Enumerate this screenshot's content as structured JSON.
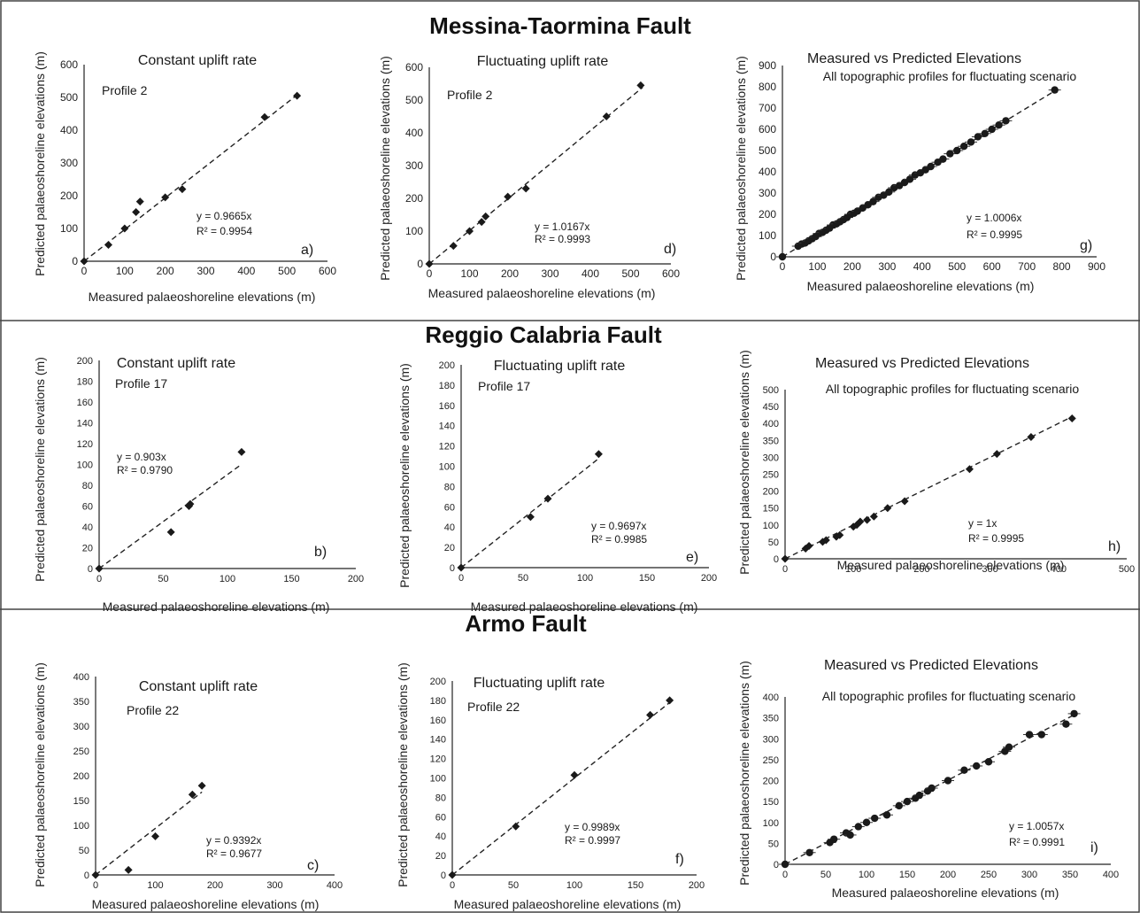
{
  "figure": {
    "section_titles": [
      "Messina-Taormina Fault",
      "Reggio Calabria Fault",
      "Armo Fault"
    ]
  },
  "chart_data": [
    {
      "id": "a",
      "section": "Messina-Taormina Fault",
      "type": "scatter",
      "title": "Constant uplift rate",
      "profile": "Profile 2",
      "xlabel": "Measured palaeoshoreline elevations (m)",
      "ylabel": "Predicted palaeoshoreline elevations (m)",
      "xlim": [
        0,
        600
      ],
      "ylim": [
        0,
        600
      ],
      "xticks": [
        0,
        100,
        200,
        300,
        400,
        500,
        600
      ],
      "yticks": [
        0,
        100,
        200,
        300,
        400,
        500,
        600
      ],
      "points": [
        [
          0,
          0
        ],
        [
          60,
          50
        ],
        [
          100,
          100
        ],
        [
          128,
          150
        ],
        [
          138,
          182
        ],
        [
          200,
          195
        ],
        [
          242,
          220
        ],
        [
          445,
          440
        ],
        [
          525,
          505
        ]
      ],
      "fit_slope": 0.9665,
      "fit_x_end": 525,
      "equation": "y = 0.9665x",
      "r2": "R² = 0.9954",
      "tag": "a)"
    },
    {
      "id": "d",
      "section": "Messina-Taormina Fault",
      "type": "scatter",
      "title": "Fluctuating uplift rate",
      "profile": "Profile 2",
      "xlabel": "Measured palaeoshoreline elevations (m)",
      "ylabel": "Predicted palaeoshoreline elevations (m)",
      "xlim": [
        0,
        600
      ],
      "ylim": [
        0,
        600
      ],
      "xticks": [
        0,
        100,
        200,
        300,
        400,
        500,
        600
      ],
      "yticks": [
        0,
        100,
        200,
        300,
        400,
        500,
        600
      ],
      "points": [
        [
          0,
          0
        ],
        [
          60,
          55
        ],
        [
          100,
          100
        ],
        [
          130,
          128
        ],
        [
          140,
          145
        ],
        [
          195,
          205
        ],
        [
          240,
          230
        ],
        [
          440,
          450
        ],
        [
          525,
          545
        ]
      ],
      "fit_slope": 1.0167,
      "fit_x_end": 530,
      "equation": "y = 1.0167x",
      "r2": "R² = 0.9993",
      "tag": "d)"
    },
    {
      "id": "g",
      "section": "Messina-Taormina Fault",
      "type": "scatter",
      "title": "Measured vs Predicted Elevations",
      "subtitle": "All topographic profiles for fluctuating scenario",
      "xlabel": "Measured palaeoshoreline elevations (m)",
      "ylabel": "Predicted palaeoshoreline elevations (m)",
      "xlim": [
        0,
        900
      ],
      "ylim": [
        0,
        900
      ],
      "xticks": [
        0,
        100,
        200,
        300,
        400,
        500,
        600,
        700,
        800,
        900
      ],
      "yticks": [
        0,
        100,
        200,
        300,
        400,
        500,
        600,
        700,
        800,
        900
      ],
      "points": [
        [
          0,
          0
        ],
        [
          45,
          50
        ],
        [
          55,
          60
        ],
        [
          65,
          65
        ],
        [
          75,
          75
        ],
        [
          85,
          85
        ],
        [
          95,
          95
        ],
        [
          105,
          110
        ],
        [
          115,
          115
        ],
        [
          125,
          125
        ],
        [
          135,
          135
        ],
        [
          145,
          150
        ],
        [
          155,
          155
        ],
        [
          165,
          165
        ],
        [
          175,
          175
        ],
        [
          185,
          185
        ],
        [
          195,
          200
        ],
        [
          205,
          205
        ],
        [
          215,
          215
        ],
        [
          230,
          230
        ],
        [
          245,
          245
        ],
        [
          260,
          260
        ],
        [
          275,
          280
        ],
        [
          290,
          290
        ],
        [
          305,
          305
        ],
        [
          320,
          325
        ],
        [
          335,
          335
        ],
        [
          350,
          350
        ],
        [
          365,
          365
        ],
        [
          380,
          385
        ],
        [
          395,
          395
        ],
        [
          410,
          410
        ],
        [
          425,
          425
        ],
        [
          445,
          445
        ],
        [
          460,
          460
        ],
        [
          480,
          485
        ],
        [
          500,
          500
        ],
        [
          520,
          520
        ],
        [
          540,
          540
        ],
        [
          560,
          565
        ],
        [
          580,
          580
        ],
        [
          600,
          600
        ],
        [
          620,
          620
        ],
        [
          640,
          640
        ],
        [
          780,
          785
        ]
      ],
      "fit_slope": 1.0006,
      "fit_x_end": 785,
      "equation": "y = 1.0006x",
      "r2": "R² = 0.9995",
      "tag": "g)"
    },
    {
      "id": "b",
      "section": "Reggio Calabria Fault",
      "type": "scatter",
      "title": "Constant uplift rate",
      "profile": "Profile 17",
      "xlabel": "Measured palaeoshoreline elevations (m)",
      "ylabel": "Predicted palaeoshoreline elevations (m)",
      "xlim": [
        0,
        200
      ],
      "ylim": [
        0,
        200
      ],
      "xticks": [
        0,
        50,
        100,
        150,
        200
      ],
      "yticks": [
        0,
        20,
        40,
        60,
        80,
        100,
        120,
        140,
        160,
        180,
        200
      ],
      "points": [
        [
          0,
          0
        ],
        [
          56,
          35
        ],
        [
          70,
          60
        ],
        [
          71,
          62
        ],
        [
          111,
          112
        ]
      ],
      "fit_slope": 0.903,
      "fit_x_end": 111,
      "equation": "y = 0.903x",
      "r2": "R² = 0.9790",
      "tag": "b)"
    },
    {
      "id": "e",
      "section": "Reggio Calabria Fault",
      "type": "scatter",
      "title": "Fluctuating uplift rate",
      "profile": "Profile 17",
      "xlabel": "Measured palaeoshoreline elevations (m)",
      "ylabel": "Predicted palaeoshoreline elevations (m)",
      "xlim": [
        0,
        200
      ],
      "ylim": [
        0,
        200
      ],
      "xticks": [
        0,
        50,
        100,
        150,
        200
      ],
      "yticks": [
        0,
        20,
        40,
        60,
        80,
        100,
        120,
        140,
        160,
        180,
        200
      ],
      "points": [
        [
          0,
          0
        ],
        [
          56,
          50
        ],
        [
          70,
          68
        ],
        [
          111,
          112
        ]
      ],
      "fit_slope": 0.9697,
      "fit_x_end": 111,
      "equation": "y = 0.9697x",
      "r2": "R² = 0.9985",
      "tag": "e)"
    },
    {
      "id": "h",
      "section": "Reggio Calabria Fault",
      "type": "scatter",
      "title": "Measured vs Predicted Elevations",
      "subtitle": "All topographic profiles for fluctuating scenario",
      "xlabel": "Measured palaeoshoreline elevations (m)",
      "ylabel": "Predicted palaeoshoreline elevations (m)",
      "xlim": [
        0,
        500
      ],
      "ylim": [
        0,
        500
      ],
      "xticks": [
        0,
        100,
        200,
        300,
        400,
        500
      ],
      "yticks": [
        0,
        50,
        100,
        150,
        200,
        250,
        300,
        350,
        400,
        450,
        500
      ],
      "points": [
        [
          0,
          0
        ],
        [
          30,
          30
        ],
        [
          35,
          38
        ],
        [
          55,
          50
        ],
        [
          60,
          55
        ],
        [
          75,
          65
        ],
        [
          80,
          70
        ],
        [
          100,
          95
        ],
        [
          105,
          100
        ],
        [
          110,
          110
        ],
        [
          120,
          115
        ],
        [
          130,
          125
        ],
        [
          150,
          150
        ],
        [
          175,
          170
        ],
        [
          270,
          265
        ],
        [
          310,
          310
        ],
        [
          360,
          360
        ],
        [
          420,
          415
        ]
      ],
      "fit_slope": 1.0,
      "fit_x_end": 420,
      "equation": "y = 1x",
      "r2": "R² = 0.9995",
      "tag": "h)"
    },
    {
      "id": "c",
      "section": "Armo Fault",
      "type": "scatter",
      "title": "Constant uplift rate",
      "profile": "Profile 22",
      "xlabel": "Measured palaeoshoreline elevations (m)",
      "ylabel": "Predicted palaeoshoreline elevations (m)",
      "xlim": [
        0,
        400
      ],
      "ylim": [
        0,
        400
      ],
      "xticks": [
        0,
        100,
        200,
        300,
        400
      ],
      "yticks": [
        0,
        50,
        100,
        150,
        200,
        250,
        300,
        350,
        400
      ],
      "points": [
        [
          0,
          0
        ],
        [
          55,
          10
        ],
        [
          100,
          78
        ],
        [
          162,
          162
        ],
        [
          178,
          180
        ]
      ],
      "fit_slope": 0.9392,
      "fit_x_end": 178,
      "equation": "y = 0.9392x",
      "r2": "R² = 0.9677",
      "tag": "c)"
    },
    {
      "id": "f",
      "section": "Armo Fault",
      "type": "scatter",
      "title": "Fluctuating uplift rate",
      "profile": "Profile 22",
      "xlabel": "Measured palaeoshoreline elevations (m)",
      "ylabel": "Predicted palaeoshoreline elevations (m)",
      "xlim": [
        0,
        200
      ],
      "ylim": [
        0,
        200
      ],
      "xticks": [
        0,
        50,
        100,
        150,
        200
      ],
      "yticks": [
        0,
        20,
        40,
        60,
        80,
        100,
        120,
        140,
        160,
        180,
        200
      ],
      "points": [
        [
          0,
          0
        ],
        [
          52,
          50
        ],
        [
          100,
          103
        ],
        [
          162,
          165
        ],
        [
          178,
          180
        ]
      ],
      "fit_slope": 0.9989,
      "fit_x_end": 180,
      "equation": "y = 0.9989x",
      "r2": "R² = 0.9997",
      "tag": "f)"
    },
    {
      "id": "i",
      "section": "Armo Fault",
      "type": "scatter",
      "title": "Measured vs Predicted Elevations",
      "subtitle": "All topographic profiles for fluctuating scenario",
      "xlabel": "Measured palaeoshoreline elevations (m)",
      "ylabel": "Predicted palaeoshoreline elevations (m)",
      "xlim": [
        0,
        400
      ],
      "ylim": [
        0,
        400
      ],
      "xticks": [
        0,
        50,
        100,
        150,
        200,
        250,
        300,
        350,
        400
      ],
      "yticks": [
        0,
        50,
        100,
        150,
        200,
        250,
        300,
        350,
        400
      ],
      "points": [
        [
          0,
          0
        ],
        [
          30,
          28
        ],
        [
          55,
          52
        ],
        [
          60,
          60
        ],
        [
          75,
          75
        ],
        [
          80,
          70
        ],
        [
          90,
          90
        ],
        [
          100,
          100
        ],
        [
          110,
          110
        ],
        [
          125,
          118
        ],
        [
          140,
          140
        ],
        [
          150,
          150
        ],
        [
          160,
          158
        ],
        [
          165,
          165
        ],
        [
          175,
          175
        ],
        [
          180,
          182
        ],
        [
          200,
          200
        ],
        [
          220,
          225
        ],
        [
          235,
          235
        ],
        [
          250,
          245
        ],
        [
          270,
          270
        ],
        [
          275,
          280
        ],
        [
          300,
          310
        ],
        [
          315,
          310
        ],
        [
          345,
          335
        ],
        [
          355,
          360
        ]
      ],
      "fit_slope": 1.0057,
      "fit_x_end": 355,
      "equation": "y = 1.0057x",
      "r2": "R² = 0.9991",
      "tag": "i)"
    }
  ]
}
